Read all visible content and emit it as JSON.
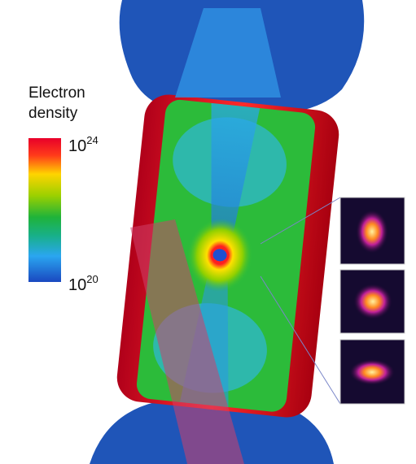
{
  "colorbar": {
    "label_lines": [
      "Electron",
      "density"
    ],
    "max": {
      "base": "10",
      "exponent": "24"
    },
    "min": {
      "base": "10",
      "exponent": "20"
    }
  }
}
